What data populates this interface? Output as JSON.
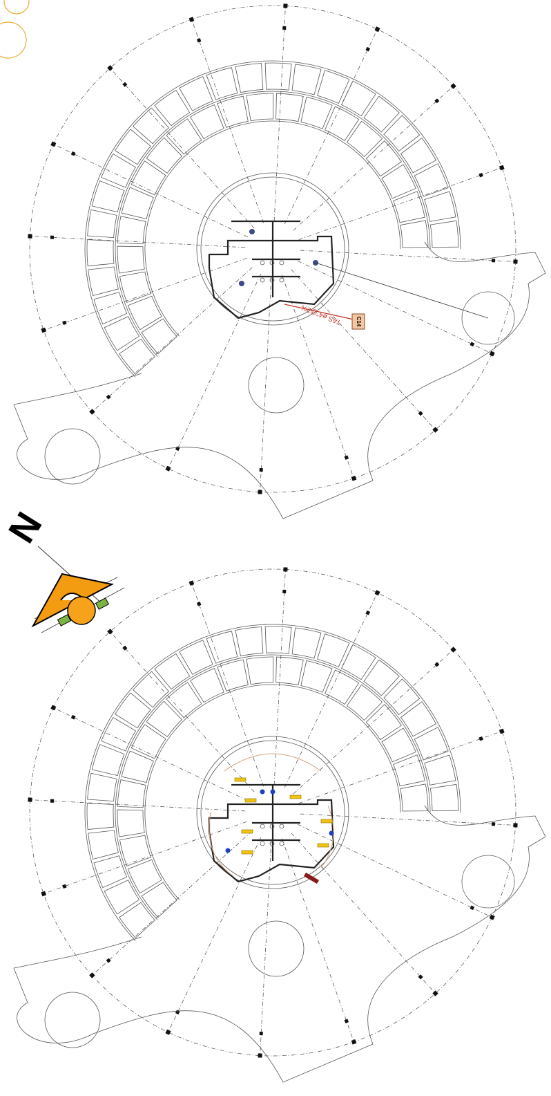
{
  "north_arrow": {
    "label": "N"
  },
  "annotations": {
    "box_label": "C14",
    "pipe_label": "TAS ø4\"@2%"
  }
}
